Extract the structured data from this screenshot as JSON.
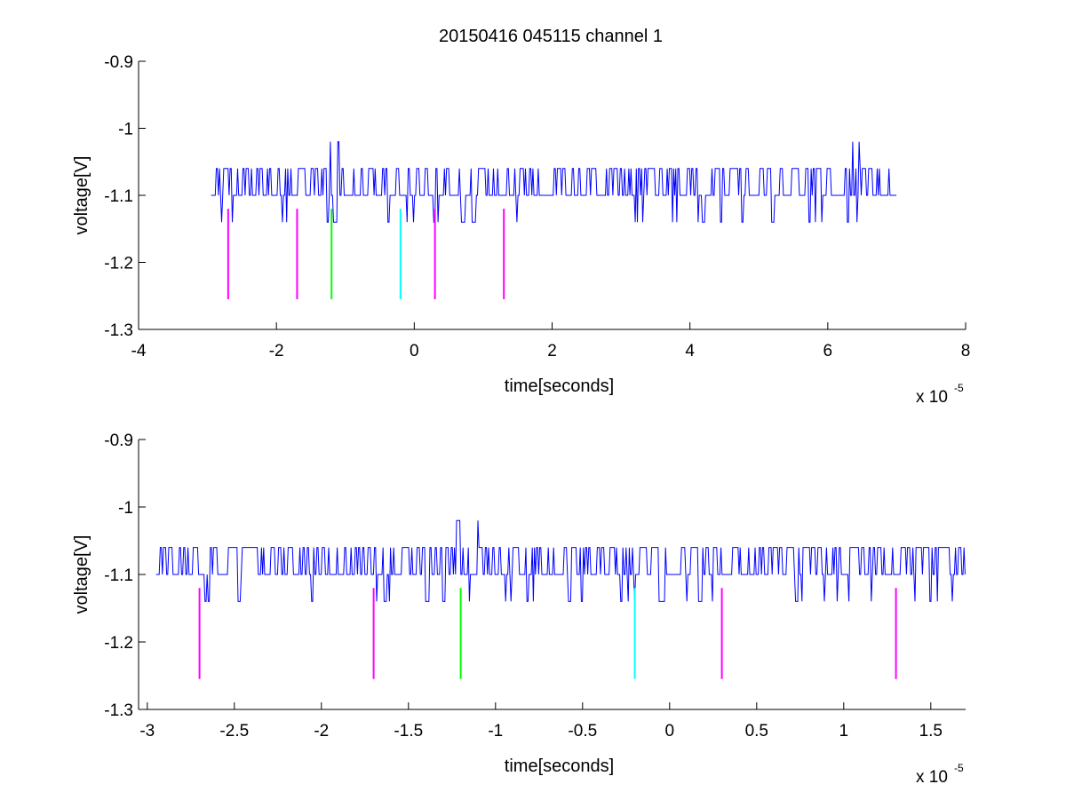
{
  "figure_title": "20150416 045115 channel 1",
  "colors": {
    "signal": "#0000ff",
    "magenta": "#ff00ff",
    "green": "#00ff00",
    "cyan": "#00ffff",
    "axes": "#000000"
  },
  "chart_data": [
    {
      "type": "line",
      "title": "20150416 045115 channel 1",
      "xlabel": "time[seconds]",
      "ylabel": "voltage[V]",
      "x_scale_label": "x 10",
      "x_scale_exponent": "-5",
      "xlim": [
        -4,
        8
      ],
      "ylim": [
        -1.3,
        -0.9
      ],
      "y_reversed": true,
      "grid": false,
      "xticks": [
        -4,
        -2,
        0,
        2,
        4,
        6,
        8
      ],
      "xtick_labels": [
        "-4",
        "-2",
        "0",
        "2",
        "4",
        "6",
        "8"
      ],
      "yticks": [
        -0.9,
        -1,
        -1.1,
        -1.2,
        -1.3
      ],
      "ytick_labels": [
        "-0.9",
        "-1",
        "-1.1",
        "-1.2",
        "-1.3"
      ],
      "signal": {
        "x_start": -2.95,
        "x_end": 7.0,
        "base": -1.1,
        "levels": [
          -1.06,
          -1.1,
          -1.14
        ],
        "spikes": [
          {
            "x": -1.22,
            "y": -1.02
          },
          {
            "x": -1.1,
            "y": -1.02
          },
          {
            "x": 6.36,
            "y": -1.02
          },
          {
            "x": 6.45,
            "y": -1.02
          }
        ]
      },
      "markers": [
        {
          "x": -2.7,
          "y_top": -1.12,
          "y_bottom": -1.255,
          "color": "#ff00ff"
        },
        {
          "x": -1.7,
          "y_top": -1.12,
          "y_bottom": -1.255,
          "color": "#ff00ff"
        },
        {
          "x": -1.2,
          "y_top": -1.12,
          "y_bottom": -1.255,
          "color": "#00ff00"
        },
        {
          "x": -0.2,
          "y_top": -1.12,
          "y_bottom": -1.255,
          "color": "#00ffff"
        },
        {
          "x": 0.3,
          "y_top": -1.12,
          "y_bottom": -1.255,
          "color": "#ff00ff"
        },
        {
          "x": 1.3,
          "y_top": -1.12,
          "y_bottom": -1.255,
          "color": "#ff00ff"
        }
      ]
    },
    {
      "type": "line",
      "title": "",
      "xlabel": "time[seconds]",
      "ylabel": "voltage[V]",
      "x_scale_label": "x 10",
      "x_scale_exponent": "-5",
      "xlim": [
        -3.05,
        1.7
      ],
      "ylim": [
        -1.3,
        -0.9
      ],
      "y_reversed": true,
      "grid": false,
      "xticks": [
        -3,
        -2.5,
        -2,
        -1.5,
        -1,
        -0.5,
        0,
        0.5,
        1,
        1.5
      ],
      "xtick_labels": [
        "-3",
        "-2.5",
        "-2",
        "-1.5",
        "-1",
        "-0.5",
        "0",
        "0.5",
        "1",
        "1.5"
      ],
      "yticks": [
        -0.9,
        -1,
        -1.1,
        -1.2,
        -1.3
      ],
      "ytick_labels": [
        "-0.9",
        "-1",
        "-1.1",
        "-1.2",
        "-1.3"
      ],
      "signal": {
        "x_start": -2.95,
        "x_end": 1.7,
        "base": -1.1,
        "levels": [
          -1.06,
          -1.1,
          -1.14
        ],
        "spikes": [
          {
            "x": -1.22,
            "y": -1.02
          },
          {
            "x": -1.1,
            "y": -1.02
          }
        ]
      },
      "markers": [
        {
          "x": -2.7,
          "y_top": -1.12,
          "y_bottom": -1.255,
          "color": "#ff00ff"
        },
        {
          "x": -1.7,
          "y_top": -1.12,
          "y_bottom": -1.255,
          "color": "#ff00ff"
        },
        {
          "x": -1.2,
          "y_top": -1.12,
          "y_bottom": -1.255,
          "color": "#00ff00"
        },
        {
          "x": -0.2,
          "y_top": -1.12,
          "y_bottom": -1.255,
          "color": "#00ffff"
        },
        {
          "x": 0.3,
          "y_top": -1.12,
          "y_bottom": -1.255,
          "color": "#ff00ff"
        },
        {
          "x": 1.3,
          "y_top": -1.12,
          "y_bottom": -1.255,
          "color": "#ff00ff"
        }
      ]
    }
  ]
}
